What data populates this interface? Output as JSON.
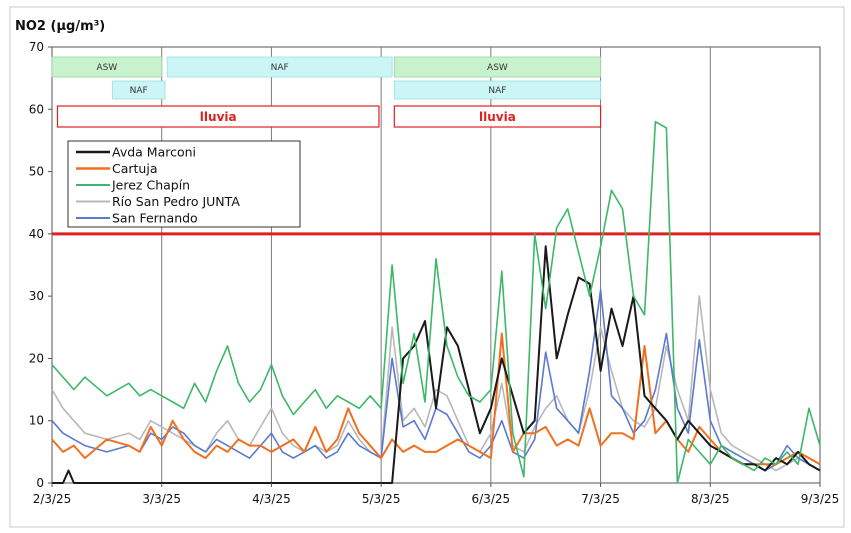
{
  "chart_data": {
    "type": "line",
    "title": "NO2 (µg/m³)",
    "ylim": [
      0,
      70
    ],
    "yticks": [
      "0",
      "10",
      "20",
      "30",
      "40",
      "50",
      "60",
      "70"
    ],
    "xticks": [
      "2/3/25",
      "3/3/25",
      "4/3/25",
      "5/3/25",
      "6/3/25",
      "7/3/25",
      "8/3/25",
      "9/3/25"
    ],
    "xlim_days": [
      0,
      7
    ],
    "grid": "vertical lines at date ticks",
    "legend": "top-left",
    "limit_line": {
      "value": 40,
      "color": "#e02020"
    },
    "bands": [
      {
        "label": "ASW",
        "row": 1,
        "start": 0.0,
        "end": 1.0,
        "fill": "#c8f2cc",
        "stroke": "#9ad6a0"
      },
      {
        "label": "NAF",
        "row": 1,
        "start": 1.05,
        "end": 3.1,
        "fill": "#ccf6f6",
        "stroke": "#9ddede"
      },
      {
        "label": "ASW",
        "row": 1,
        "start": 3.12,
        "end": 5.0,
        "fill": "#c8f2cc",
        "stroke": "#9ad6a0"
      },
      {
        "label": "NAF",
        "row": 2,
        "start": 0.55,
        "end": 1.03,
        "fill": "#ccf6f6",
        "stroke": "#9ddede"
      },
      {
        "label": "NAF",
        "row": 2,
        "start": 3.12,
        "end": 5.0,
        "fill": "#ccf6f6",
        "stroke": "#9ddede"
      }
    ],
    "rain_bands": [
      {
        "label": "lluvia",
        "start": 0.05,
        "end": 2.98
      },
      {
        "label": "lluvia",
        "start": 3.12,
        "end": 5.0
      }
    ],
    "series": [
      {
        "name": "Avda Marconi",
        "color": "#1a1a1a",
        "x": [
          0,
          0.1,
          0.15,
          0.2,
          0.5,
          1.0,
          1.5,
          2.0,
          2.1,
          2.2,
          2.3,
          2.4,
          2.5,
          2.6,
          2.7,
          2.8,
          2.9,
          3.0,
          3.05,
          3.1,
          3.2,
          3.3,
          3.4,
          3.5,
          3.6,
          3.7,
          3.8,
          3.9,
          4.0,
          4.1,
          4.2,
          4.3,
          4.4,
          4.5,
          4.6,
          4.7,
          4.8,
          4.9,
          5.0,
          5.1,
          5.2,
          5.3,
          5.4,
          5.5,
          5.6,
          5.7,
          5.8,
          5.9,
          6.0,
          6.1,
          6.2,
          6.3,
          6.4,
          6.5,
          6.6,
          6.7,
          6.8,
          6.9,
          7.0
        ],
        "y": [
          0,
          0,
          2,
          0,
          0,
          0,
          0,
          0,
          0,
          0,
          0,
          0,
          0,
          0,
          0,
          0,
          0,
          0,
          0,
          0,
          20,
          22,
          26,
          12,
          25,
          22,
          15,
          8,
          12,
          20,
          14,
          8,
          10,
          38,
          20,
          27,
          33,
          32,
          18,
          28,
          22,
          30,
          14,
          12,
          10,
          7,
          10,
          8,
          6,
          5,
          4,
          3,
          3,
          2,
          4,
          3,
          5,
          3,
          2
        ]
      },
      {
        "name": "Cartuja",
        "color": "#f07020",
        "x": [
          0,
          0.1,
          0.2,
          0.3,
          0.5,
          0.7,
          0.8,
          0.9,
          1.0,
          1.1,
          1.2,
          1.3,
          1.4,
          1.5,
          1.6,
          1.7,
          1.8,
          1.9,
          2.0,
          2.1,
          2.2,
          2.3,
          2.4,
          2.5,
          2.6,
          2.7,
          2.8,
          2.9,
          3.0,
          3.1,
          3.2,
          3.3,
          3.4,
          3.5,
          3.6,
          3.7,
          3.8,
          3.9,
          4.0,
          4.1,
          4.2,
          4.3,
          4.4,
          4.5,
          4.6,
          4.7,
          4.8,
          4.9,
          5.0,
          5.1,
          5.2,
          5.3,
          5.4,
          5.5,
          5.6,
          5.7,
          5.8,
          5.9,
          6.0,
          6.1,
          6.2,
          6.3,
          6.4,
          6.5,
          6.6,
          6.7,
          6.8,
          6.9,
          7.0
        ],
        "y": [
          7,
          5,
          6,
          4,
          7,
          6,
          5,
          9,
          6,
          10,
          7,
          5,
          4,
          6,
          5,
          7,
          6,
          6,
          5,
          6,
          7,
          5,
          9,
          5,
          7,
          12,
          8,
          6,
          4,
          7,
          5,
          6,
          5,
          5,
          6,
          7,
          6,
          5,
          4,
          24,
          5,
          8,
          8,
          9,
          6,
          7,
          6,
          12,
          6,
          8,
          8,
          7,
          22,
          8,
          10,
          7,
          5,
          9,
          7,
          5,
          4,
          3,
          3,
          3,
          3,
          4,
          5,
          4,
          3
        ]
      },
      {
        "name": "Jerez Chapín",
        "color": "#3cb868",
        "x": [
          0,
          0.1,
          0.2,
          0.3,
          0.5,
          0.7,
          0.8,
          0.9,
          1.0,
          1.1,
          1.2,
          1.3,
          1.4,
          1.5,
          1.6,
          1.7,
          1.8,
          1.9,
          2.0,
          2.1,
          2.2,
          2.3,
          2.4,
          2.5,
          2.6,
          2.7,
          2.8,
          2.9,
          3.0,
          3.1,
          3.2,
          3.3,
          3.4,
          3.5,
          3.6,
          3.7,
          3.8,
          3.9,
          4.0,
          4.1,
          4.2,
          4.3,
          4.4,
          4.5,
          4.6,
          4.7,
          4.8,
          4.9,
          5.0,
          5.1,
          5.2,
          5.3,
          5.4,
          5.5,
          5.6,
          5.7,
          5.8,
          5.9,
          6.0,
          6.1,
          6.2,
          6.3,
          6.4,
          6.5,
          6.6,
          6.7,
          6.8,
          6.9,
          7.0
        ],
        "y": [
          19,
          17,
          15,
          17,
          14,
          16,
          14,
          15,
          14,
          13,
          12,
          16,
          13,
          18,
          22,
          16,
          13,
          15,
          19,
          14,
          11,
          13,
          15,
          12,
          14,
          13,
          12,
          14,
          12,
          35,
          16,
          24,
          13,
          36,
          22,
          17,
          14,
          13,
          15,
          34,
          8,
          1,
          40,
          28,
          41,
          44,
          37,
          30,
          38,
          47,
          44,
          30,
          27,
          58,
          57,
          0,
          7,
          5,
          3,
          6,
          4,
          3,
          2,
          4,
          3,
          5,
          3,
          12,
          6
        ]
      },
      {
        "name": "Río San Pedro JUNTA",
        "color": "#b8b8b8",
        "x": [
          0,
          0.1,
          0.2,
          0.3,
          0.5,
          0.7,
          0.8,
          0.9,
          1.0,
          1.1,
          1.2,
          1.3,
          1.4,
          1.5,
          1.6,
          1.7,
          1.8,
          1.9,
          2.0,
          2.1,
          2.2,
          2.3,
          2.4,
          2.5,
          2.6,
          2.7,
          2.8,
          2.9,
          3.0,
          3.1,
          3.2,
          3.3,
          3.4,
          3.5,
          3.6,
          3.7,
          3.8,
          3.9,
          4.0,
          4.1,
          4.2,
          4.3,
          4.4,
          4.5,
          4.6,
          4.7,
          4.8,
          4.9,
          5.0,
          5.1,
          5.2,
          5.3,
          5.4,
          5.5,
          5.6,
          5.7,
          5.8,
          5.9,
          6.0,
          6.1,
          6.2,
          6.3,
          6.4,
          6.5,
          6.6,
          6.7,
          6.8,
          6.9,
          7.0
        ],
        "y": [
          15,
          12,
          10,
          8,
          7,
          8,
          7,
          10,
          9,
          8,
          7,
          6,
          5,
          8,
          10,
          7,
          6,
          9,
          12,
          8,
          6,
          5,
          6,
          5,
          6,
          10,
          7,
          5,
          4,
          25,
          10,
          12,
          9,
          15,
          14,
          10,
          6,
          5,
          8,
          16,
          6,
          5,
          9,
          12,
          14,
          10,
          8,
          15,
          25,
          18,
          12,
          10,
          9,
          12,
          22,
          15,
          10,
          30,
          15,
          8,
          6,
          5,
          4,
          3,
          2,
          3,
          4,
          3,
          2
        ]
      },
      {
        "name": "San Fernando",
        "color": "#5a7ad0",
        "x": [
          0,
          0.1,
          0.2,
          0.3,
          0.5,
          0.7,
          0.8,
          0.9,
          1.0,
          1.1,
          1.2,
          1.3,
          1.4,
          1.5,
          1.6,
          1.7,
          1.8,
          1.9,
          2.0,
          2.1,
          2.2,
          2.3,
          2.4,
          2.5,
          2.6,
          2.7,
          2.8,
          2.9,
          3.0,
          3.1,
          3.2,
          3.3,
          3.4,
          3.5,
          3.6,
          3.7,
          3.8,
          3.9,
          4.0,
          4.1,
          4.2,
          4.3,
          4.4,
          4.5,
          4.6,
          4.7,
          4.8,
          4.9,
          5.0,
          5.1,
          5.2,
          5.3,
          5.4,
          5.5,
          5.6,
          5.7,
          5.8,
          5.9,
          6.0,
          6.1,
          6.2,
          6.3,
          6.4,
          6.5,
          6.6,
          6.7,
          6.8,
          6.9,
          7.0
        ],
        "y": [
          10,
          8,
          7,
          6,
          5,
          6,
          5,
          8,
          7,
          9,
          8,
          6,
          5,
          7,
          6,
          5,
          4,
          6,
          8,
          5,
          4,
          5,
          6,
          4,
          5,
          8,
          6,
          5,
          4,
          20,
          9,
          10,
          7,
          12,
          11,
          8,
          5,
          4,
          6,
          10,
          5,
          4,
          7,
          21,
          12,
          10,
          8,
          18,
          31,
          14,
          12,
          8,
          10,
          15,
          24,
          12,
          8,
          23,
          10,
          6,
          5,
          4,
          3,
          2,
          3,
          6,
          4,
          3,
          2
        ]
      }
    ]
  }
}
